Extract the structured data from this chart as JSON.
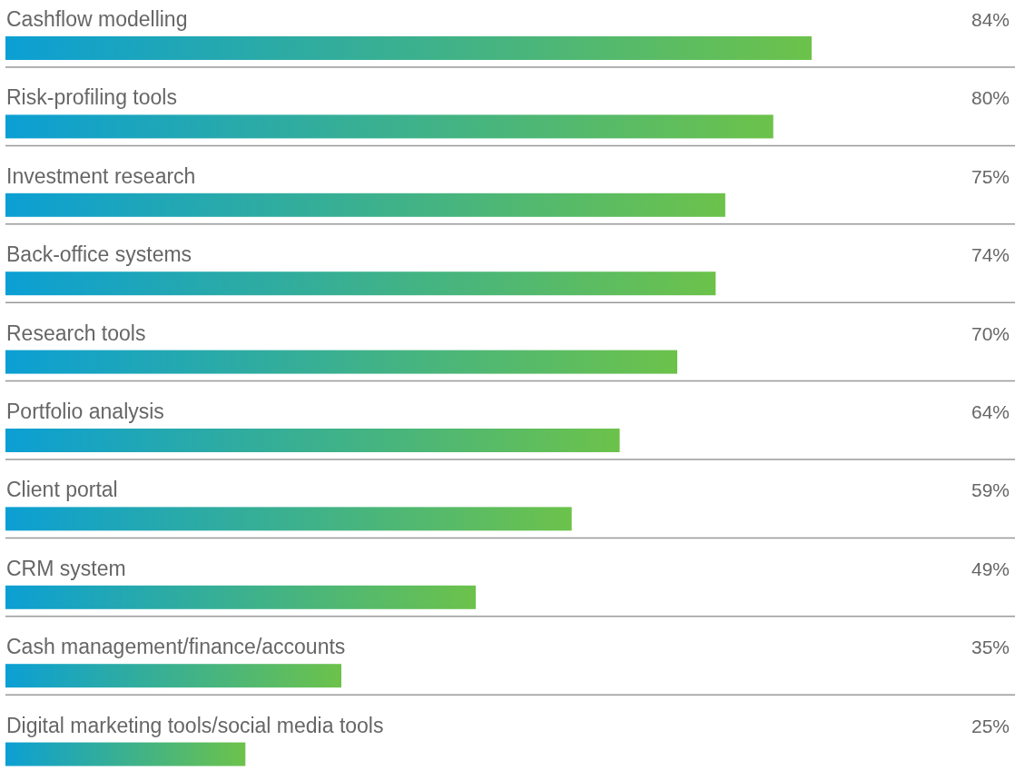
{
  "chart_data": {
    "type": "bar",
    "orientation": "horizontal",
    "categories": [
      "Cashflow modelling",
      "Risk-profiling tools",
      "Investment research",
      "Back-office systems",
      "Research tools",
      "Portfolio analysis",
      "Client portal",
      "CRM system",
      "Cash management/finance/accounts",
      "Digital marketing tools/social media tools"
    ],
    "values": [
      84,
      80,
      75,
      74,
      70,
      64,
      59,
      49,
      35,
      25
    ],
    "value_labels": [
      "84%",
      "80%",
      "75%",
      "74%",
      "70%",
      "64%",
      "59%",
      "49%",
      "35%",
      "25%"
    ],
    "color": "#6cc24a"
  }
}
